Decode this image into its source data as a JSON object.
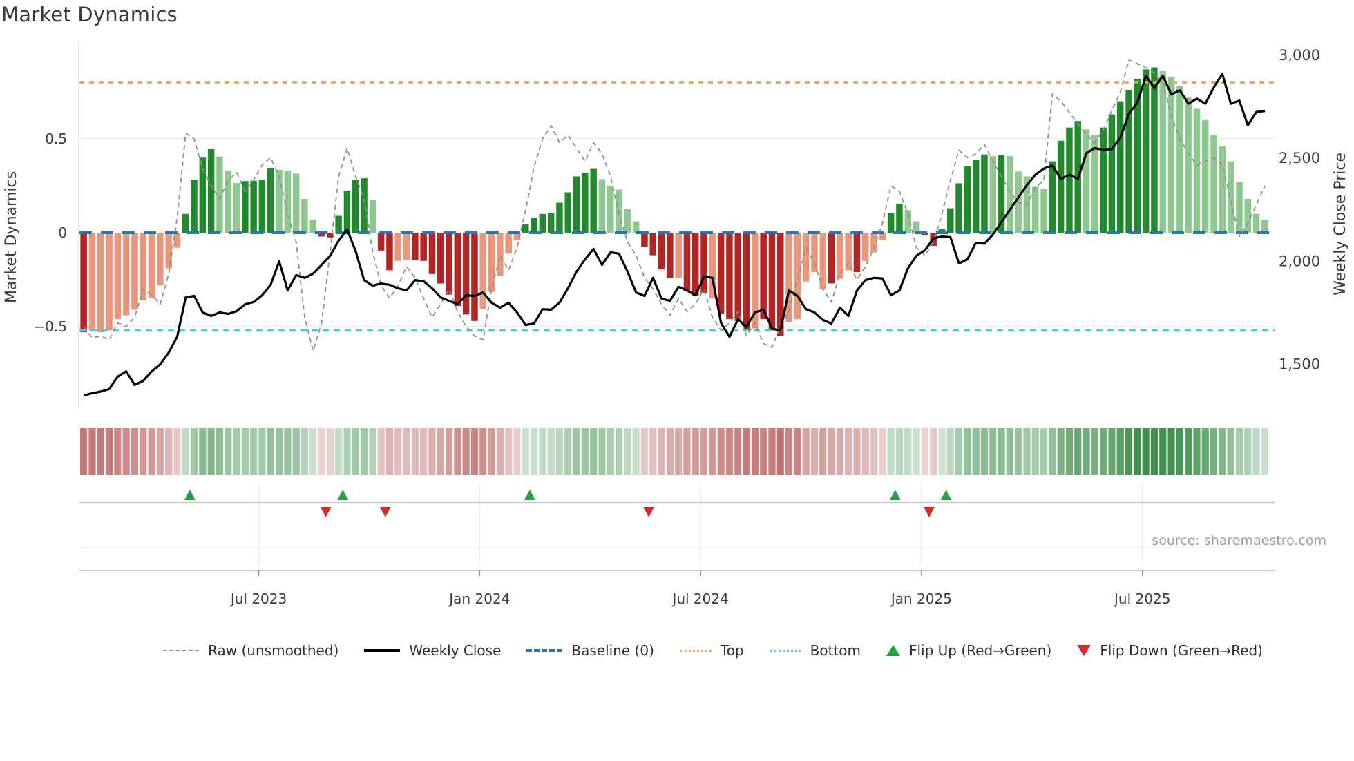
{
  "title": "Market Dynamics",
  "source": {
    "text": "source: sharemaestro.com"
  },
  "axes": {
    "left": {
      "title": "Market Dynamics",
      "ticks": [
        {
          "label": "0.5",
          "value": 0.5
        },
        {
          "label": "0",
          "value": 0
        },
        {
          "label": "−0.5",
          "value": -0.5
        }
      ]
    },
    "right": {
      "title": "Weekly Close Price",
      "ticks": [
        {
          "label": "3,000",
          "value": 3000
        },
        {
          "label": "2,500",
          "value": 2500
        },
        {
          "label": "2,000",
          "value": 2000
        },
        {
          "label": "1,500",
          "value": 1500
        }
      ]
    },
    "x": {
      "ticks": [
        {
          "label": "Jul 2023",
          "week": 21.1
        },
        {
          "label": "Jan 2024",
          "week": 47.1
        },
        {
          "label": "Jul 2024",
          "week": 73.1
        },
        {
          "label": "Jan 2025",
          "week": 99.1
        },
        {
          "label": "Jul 2025",
          "week": 125.1
        }
      ]
    }
  },
  "legend": {
    "items": [
      {
        "id": "raw",
        "label": "Raw (unsmoothed)",
        "swatch": "dash-gray"
      },
      {
        "id": "close",
        "label": "Weekly Close",
        "swatch": "line-black"
      },
      {
        "id": "baseline",
        "label": "Baseline (0)",
        "swatch": "dash-blue"
      },
      {
        "id": "top",
        "label": "Top",
        "swatch": "dot-orange"
      },
      {
        "id": "bottom",
        "label": "Bottom",
        "swatch": "dot-cyan"
      },
      {
        "id": "flip-up",
        "label": "Flip Up (Red→Green)",
        "swatch": "tri-up"
      },
      {
        "id": "flip-down",
        "label": "Flip Down (Green→Red)",
        "swatch": "tri-down"
      }
    ]
  },
  "colors": {
    "bar_strong_green": "#218a2c",
    "bar_soft_green": "#8ec78f",
    "bar_strong_red": "#b22525",
    "bar_soft_red": "#e8967c",
    "baseline": "#1f77b4",
    "top_line": "#f0a458",
    "bottom_line": "#3ecfe3",
    "raw_line": "#8f8f8f",
    "price_line": "#000000",
    "flip_up": "#2b9e3f",
    "flip_down": "#d62b2b",
    "grid": "#e7ebf1",
    "panel_line": "#c9c9c9",
    "heat_red_rgb": "170,60,60",
    "heat_green_rgb": "55,140,70"
  },
  "chart_data": {
    "type": "combo",
    "weeks": 140,
    "baseline": 0,
    "top_line": 0.8,
    "bottom_line": -0.52,
    "left_ylim": [
      -0.93,
      1.03
    ],
    "right_ylim": [
      1290,
      3075
    ],
    "grid": "horizontal at ±0.5 only",
    "legend_position": "bottom",
    "flip_up_weeks": [
      12,
      30,
      52,
      95,
      101
    ],
    "flip_down_weeks": [
      28,
      35,
      66,
      99
    ],
    "heatmap": "strip below main chart; cell color = sign/magnitude of smoothed dynamics values",
    "series": [
      {
        "name": "Market Dynamics (smoothed, bars)",
        "type": "bar",
        "axis": "left",
        "values": [
          -0.53,
          -0.52,
          -0.53,
          -0.52,
          -0.46,
          -0.44,
          -0.41,
          -0.36,
          -0.35,
          -0.28,
          -0.19,
          -0.08,
          0.1,
          0.28,
          0.4,
          0.445,
          0.405,
          0.33,
          0.265,
          0.275,
          0.277,
          0.28,
          0.345,
          0.335,
          0.33,
          0.315,
          0.18,
          0.07,
          -0.02,
          -0.025,
          0.09,
          0.225,
          0.28,
          0.29,
          0.175,
          -0.095,
          -0.2,
          -0.15,
          -0.145,
          -0.145,
          -0.15,
          -0.22,
          -0.27,
          -0.33,
          -0.39,
          -0.435,
          -0.47,
          -0.405,
          -0.315,
          -0.23,
          -0.11,
          -0.04,
          0.045,
          0.08,
          0.1,
          0.105,
          0.16,
          0.215,
          0.3,
          0.32,
          0.34,
          0.285,
          0.25,
          0.23,
          0.125,
          0.06,
          -0.075,
          -0.12,
          -0.195,
          -0.24,
          -0.24,
          -0.31,
          -0.335,
          -0.32,
          -0.35,
          -0.43,
          -0.46,
          -0.47,
          -0.52,
          -0.51,
          -0.46,
          -0.52,
          -0.55,
          -0.475,
          -0.46,
          -0.26,
          -0.21,
          -0.3,
          -0.27,
          -0.245,
          -0.2,
          -0.21,
          -0.15,
          -0.105,
          -0.04,
          0.105,
          0.155,
          0.12,
          0.06,
          -0.015,
          -0.07,
          0.02,
          0.13,
          0.263,
          0.356,
          0.386,
          0.417,
          0.408,
          0.412,
          0.408,
          0.326,
          0.3,
          0.245,
          0.233,
          0.38,
          0.49,
          0.56,
          0.595,
          0.55,
          0.52,
          0.56,
          0.63,
          0.7,
          0.76,
          0.82,
          0.87,
          0.88,
          0.86,
          0.83,
          0.78,
          0.72,
          0.66,
          0.6,
          0.52,
          0.46,
          0.38,
          0.27,
          0.18,
          0.1,
          0.07
        ],
        "strong_shade": [
          1,
          0,
          0,
          0,
          0,
          0,
          0,
          0,
          0,
          0,
          0,
          0,
          1,
          1,
          1,
          1,
          0,
          0,
          0,
          1,
          1,
          1,
          1,
          0,
          0,
          0,
          0,
          0,
          1,
          1,
          1,
          1,
          1,
          1,
          0,
          1,
          1,
          0,
          0,
          1,
          1,
          1,
          1,
          1,
          1,
          1,
          1,
          0,
          0,
          0,
          0,
          0,
          1,
          1,
          1,
          1,
          1,
          1,
          1,
          1,
          1,
          0,
          0,
          0,
          0,
          0,
          1,
          1,
          1,
          1,
          0,
          1,
          1,
          1,
          0,
          1,
          1,
          1,
          1,
          0,
          1,
          1,
          1,
          0,
          0,
          0,
          0,
          0,
          1,
          0,
          0,
          1,
          0,
          0,
          0,
          1,
          1,
          0,
          0,
          1,
          1,
          1,
          1,
          1,
          1,
          1,
          1,
          0,
          1,
          0,
          0,
          0,
          0,
          0,
          1,
          1,
          1,
          1,
          0,
          0,
          1,
          1,
          1,
          1,
          1,
          1,
          1,
          0,
          0,
          0,
          0,
          0,
          0,
          0,
          0,
          0,
          0,
          0,
          0,
          0
        ]
      },
      {
        "name": "Raw (unsmoothed)",
        "type": "line-dashed",
        "axis": "left",
        "values": [
          -0.5,
          -0.56,
          -0.55,
          -0.57,
          -0.48,
          -0.5,
          -0.45,
          -0.3,
          -0.33,
          -0.38,
          -0.22,
          0.08,
          0.53,
          0.5,
          0.34,
          0.25,
          0.18,
          0.28,
          0.32,
          0.22,
          0.28,
          0.36,
          0.4,
          0.3,
          0.1,
          -0.05,
          -0.45,
          -0.63,
          -0.48,
          -0.1,
          0.3,
          0.45,
          0.3,
          0.18,
          -0.1,
          -0.28,
          -0.35,
          -0.28,
          -0.18,
          -0.24,
          -0.35,
          -0.45,
          -0.38,
          -0.3,
          -0.42,
          -0.5,
          -0.55,
          -0.57,
          -0.3,
          -0.12,
          -0.2,
          -0.08,
          0.12,
          0.35,
          0.5,
          0.57,
          0.48,
          0.52,
          0.45,
          0.38,
          0.48,
          0.42,
          0.3,
          0.1,
          -0.05,
          -0.12,
          -0.24,
          -0.3,
          -0.38,
          -0.44,
          -0.35,
          -0.42,
          -0.38,
          -0.3,
          -0.45,
          -0.52,
          -0.48,
          -0.42,
          -0.55,
          -0.48,
          -0.59,
          -0.61,
          -0.5,
          -0.42,
          -0.25,
          -0.08,
          -0.16,
          -0.3,
          -0.37,
          -0.22,
          -0.16,
          -0.25,
          -0.18,
          -0.08,
          0.05,
          0.25,
          0.22,
          0.1,
          -0.08,
          -0.12,
          -0.05,
          0.1,
          0.28,
          0.44,
          0.4,
          0.42,
          0.47,
          0.38,
          0.3,
          0.22,
          0.16,
          0.15,
          0.24,
          0.28,
          0.74,
          0.7,
          0.64,
          0.58,
          0.52,
          0.48,
          0.55,
          0.65,
          0.75,
          0.92,
          0.9,
          0.88,
          0.85,
          0.8,
          0.62,
          0.5,
          0.42,
          0.36,
          0.38,
          0.4,
          0.36,
          0.17,
          -0.02,
          0.05,
          0.15,
          0.25
        ]
      },
      {
        "name": "Weekly Close",
        "type": "line",
        "axis": "right",
        "values": [
          1350,
          1360,
          1368,
          1380,
          1440,
          1466,
          1400,
          1420,
          1466,
          1500,
          1557,
          1634,
          1825,
          1832,
          1752,
          1735,
          1752,
          1745,
          1758,
          1792,
          1802,
          1835,
          1886,
          2000,
          1859,
          1933,
          1920,
          1940,
          1983,
          2027,
          2100,
          2154,
          2050,
          1909,
          1882,
          1892,
          1886,
          1869,
          1859,
          1909,
          1903,
          1869,
          1825,
          1808,
          1792,
          1835,
          1832,
          1849,
          1799,
          1775,
          1799,
          1752,
          1691,
          1698,
          1768,
          1765,
          1800,
          1870,
          1950,
          2010,
          2060,
          1983,
          2044,
          2037,
          1950,
          1849,
          1832,
          1920,
          1819,
          1808,
          1876,
          1859,
          1835,
          1926,
          1920,
          1701,
          1634,
          1718,
          1681,
          1752,
          1765,
          1674,
          1664,
          1859,
          1832,
          1768,
          1752,
          1715,
          1698,
          1775,
          1735,
          1859,
          1909,
          1920,
          1917,
          1835,
          1859,
          1966,
          2027,
          2054,
          2111,
          2121,
          2117,
          1990,
          2010,
          2090,
          2085,
          2130,
          2190,
          2250,
          2310,
          2370,
          2420,
          2450,
          2465,
          2400,
          2420,
          2400,
          2525,
          2550,
          2540,
          2545,
          2600,
          2715,
          2770,
          2900,
          2840,
          2900,
          2810,
          2830,
          2765,
          2790,
          2765,
          2845,
          2910,
          2765,
          2780,
          2660,
          2725,
          2730
        ]
      }
    ]
  }
}
